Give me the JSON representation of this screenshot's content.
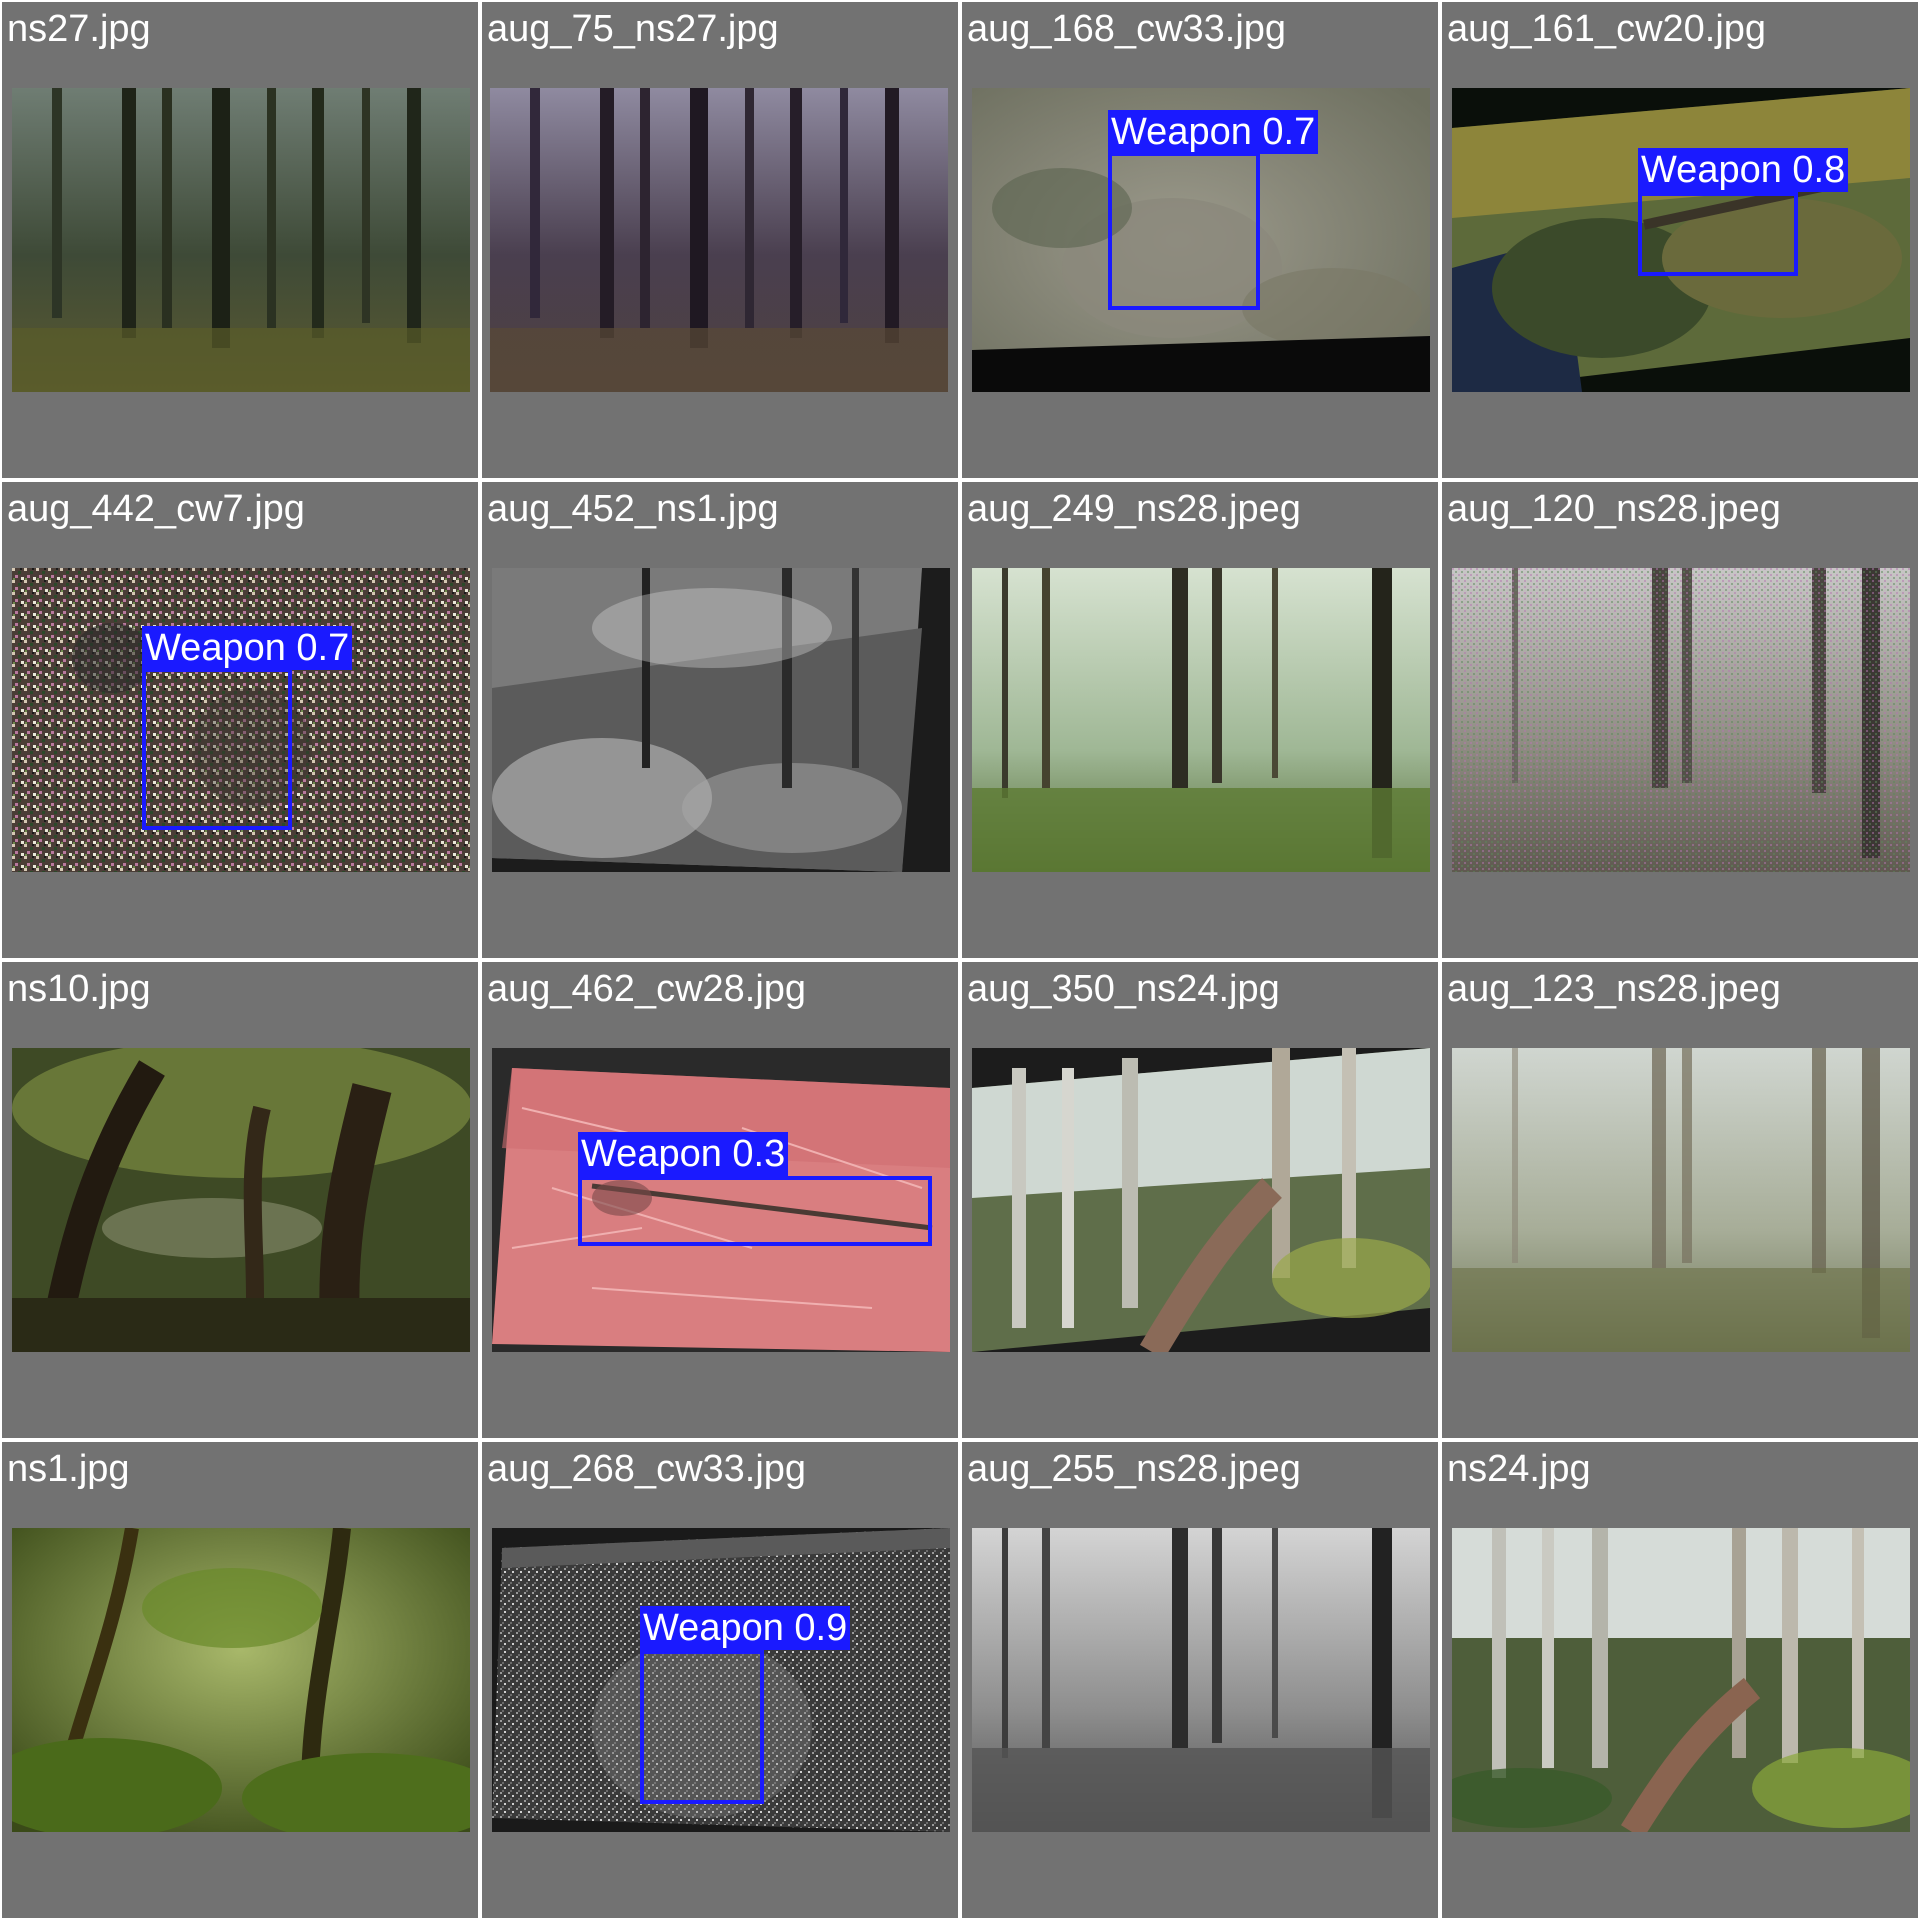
{
  "mosaic": {
    "cells": [
      {
        "title": "ns27.jpg",
        "scene": "dark-conifer",
        "tilt": 0
      },
      {
        "title": "aug_75_ns27.jpg",
        "scene": "purple-conifer",
        "tilt": 0.5
      },
      {
        "title": "aug_168_cw33.jpg",
        "scene": "blur-rock",
        "tilt": -1,
        "detection": {
          "label": "Weapon 0.7"
        }
      },
      {
        "title": "aug_161_cw20.jpg",
        "scene": "ghillie-rifle",
        "tilt": -12,
        "detection": {
          "label": "Weapon 0.8"
        }
      },
      {
        "title": "aug_442_cw7.jpg",
        "scene": "noise",
        "tilt": 0,
        "detection": {
          "label": "Weapon 0.7"
        }
      },
      {
        "title": "aug_452_ns1.jpg",
        "scene": "bw-jungle",
        "tilt": 5,
        "detection": null
      },
      {
        "title": "aug_249_ns28.jpeg",
        "scene": "green-beech",
        "tilt": 0
      },
      {
        "title": "aug_120_ns28.jpeg",
        "scene": "noisy-beech",
        "tilt": 0
      },
      {
        "title": "ns10.jpg",
        "scene": "swamp",
        "tilt": 0
      },
      {
        "title": "aug_462_cw28.jpg",
        "scene": "pink-needles",
        "tilt": 6,
        "detection": {
          "label": "Weapon 0.3"
        }
      },
      {
        "title": "aug_350_ns24.jpg",
        "scene": "trail-birch",
        "tilt": -8
      },
      {
        "title": "aug_123_ns28.jpeg",
        "scene": "hazy-beech",
        "tilt": 0
      },
      {
        "title": "ns1.jpg",
        "scene": "jungle-green",
        "tilt": 0
      },
      {
        "title": "aug_268_cw33.jpg",
        "scene": "bw-noise-rock",
        "tilt": 4,
        "detection": {
          "label": "Weapon 0.9"
        }
      },
      {
        "title": "aug_255_ns28.jpeg",
        "scene": "bw-beech",
        "tilt": 0
      },
      {
        "title": "ns24.jpg",
        "scene": "trail-birch-flat",
        "tilt": 0
      }
    ],
    "box_color": "#1a1aff",
    "cell_background": "#727272"
  }
}
